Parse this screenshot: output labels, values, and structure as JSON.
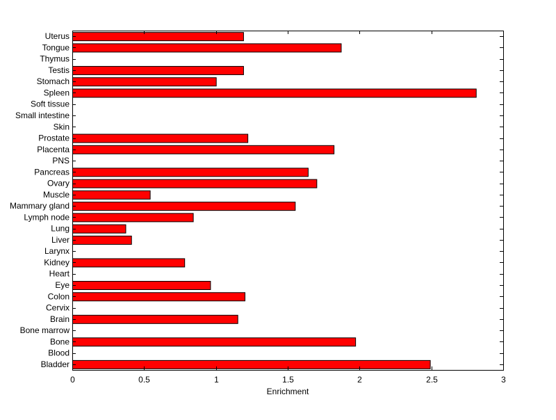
{
  "chart_data": {
    "type": "bar",
    "orientation": "horizontal",
    "title": "",
    "xlabel": "Enrichment",
    "ylabel": "",
    "xlim": [
      0,
      3
    ],
    "xticks": [
      "0",
      "0.5",
      "1",
      "1.5",
      "2",
      "2.5",
      "3"
    ],
    "grid": false,
    "categories": [
      "Uterus",
      "Tongue",
      "Thymus",
      "Testis",
      "Stomach",
      "Spleen",
      "Soft tissue",
      "Small intestine",
      "Skin",
      "Prostate",
      "Placenta",
      "PNS",
      "Pancreas",
      "Ovary",
      "Muscle",
      "Mammary gland",
      "Lymph node",
      "Lung",
      "Liver",
      "Larynx",
      "Kidney",
      "Heart",
      "Eye",
      "Colon",
      "Cervix",
      "Brain",
      "Bone marrow",
      "Bone",
      "Blood",
      "Bladder"
    ],
    "values": [
      1.19,
      1.87,
      0,
      1.19,
      1.0,
      2.81,
      0,
      0,
      0,
      1.22,
      1.82,
      0,
      1.64,
      1.7,
      0.54,
      1.55,
      0.84,
      0.37,
      0.41,
      0,
      0.78,
      0,
      0.96,
      1.2,
      0,
      1.15,
      0,
      1.97,
      0,
      2.49
    ],
    "colors": {
      "bar_fill": "#ff0000",
      "bar_edge": "#000000",
      "axis": "#000000",
      "background": "#ffffff"
    }
  }
}
